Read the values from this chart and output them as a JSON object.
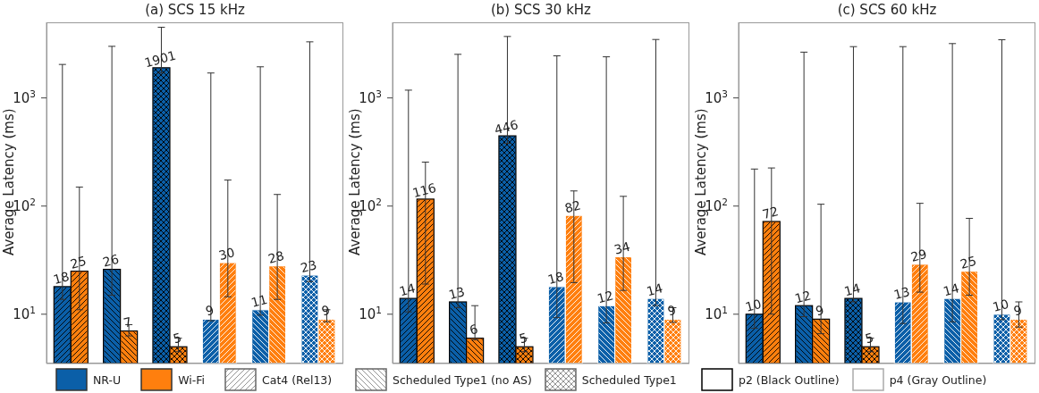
{
  "chart_data": [
    {
      "type": "bar",
      "title": "(a) SCS 15 kHz",
      "ylabel": "Average Latency (ms)",
      "categories": [
        null,
        null,
        null,
        null,
        null,
        null
      ],
      "series": [
        {
          "name": "NR-U",
          "color": "#0b5fa8",
          "values": [
            18,
            26,
            1901,
            9,
            11,
            23
          ],
          "errors": [
            [
              13.7,
              2040
            ],
            [
              15,
              3000
            ],
            [
              1700,
              4500
            ],
            [
              8.7,
              1700
            ],
            [
              9.8,
              1940
            ],
            [
              20,
              3300
            ]
          ]
        },
        {
          "name": "Wi-Fi",
          "color": "#ff7f0e",
          "values": [
            25,
            7,
            5,
            30,
            28,
            9
          ],
          "errors": [
            [
              11,
              150
            ],
            [
              6.3,
              8
            ],
            [
              4.5,
              6
            ],
            [
              14.5,
              174
            ],
            [
              13.7,
              128
            ],
            [
              8.5,
              11
            ]
          ]
        }
      ],
      "ylim": [
        3.5,
        5000
      ],
      "yticks": [
        {
          "value": 10,
          "label": "10$^{1}$"
        },
        {
          "value": 100,
          "label": "10$^{2}$"
        },
        {
          "value": 1000,
          "label": "10$^{3}$"
        }
      ],
      "log": true,
      "data_labels": true,
      "tick_labels": "y",
      "legend": "bottom",
      "annotations": [
        "Cat4 (Rel13)"
      ]
    },
    {
      "type": "bar",
      "title": "(b) SCS 30 kHz",
      "ylabel": "Average Latency (ms)",
      "categories": [
        null,
        null,
        null,
        null,
        null,
        null
      ],
      "series": [
        {
          "color": "#0b5fa8",
          "values": [
            14,
            13,
            446,
            18,
            12,
            14
          ],
          "errors": [
            [
              10.5,
              1180
            ],
            [
              11.5,
              2530
            ],
            [
              380,
              3700
            ],
            [
              9.3,
              2450
            ],
            [
              8.3,
              2400
            ],
            [
              12,
              3470
            ]
          ]
        },
        {
          "color": "#ff7f0e",
          "values": [
            116,
            6,
            5,
            82,
            34,
            9
          ],
          "errors": [
            [
              19,
              255
            ],
            [
              5.8,
              12
            ],
            [
              4.5,
              6
            ],
            [
              19.6,
              138
            ],
            [
              16.6,
              123
            ],
            [
              8.4,
              11.5
            ]
          ]
        }
      ],
      "ylim": [
        3.5,
        5000
      ],
      "yticks": [
        {
          "value": 10,
          "label": "10$^{1}$"
        },
        {
          "value": 100,
          "label": "10$^{2}$"
        },
        {
          "value": 1000,
          "label": "10$^{3}$"
        }
      ],
      "log": true,
      "data_labels": true,
      "tick_labels": "y",
      "annotations": [
        "Scheduled Type1 (no AS)",
        "Scheduled Type1"
      ]
    },
    {
      "type": "bar",
      "title": "(c) SCS 60 kHz",
      "ylabel": "Average Latency (ms)",
      "categories": [
        null,
        null,
        null,
        null,
        null,
        null
      ],
      "series": [
        {
          "color": "#0b5fa8",
          "values": [
            10,
            12,
            14,
            13,
            14,
            10
          ],
          "errors": [
            [
              7.4,
              220
            ],
            [
              9.5,
              2650
            ],
            [
              13,
              2980
            ],
            [
              8.2,
              2980
            ],
            [
              8.5,
              3180
            ],
            [
              8.9,
              3450
            ]
          ]
        },
        {
          "color": "#ff7f0e",
          "values": [
            72,
            9,
            5,
            29,
            25,
            9
          ],
          "errors": [
            [
              10,
              225
            ],
            [
              6.6,
              104
            ],
            [
              4.5,
              6
            ],
            [
              16,
              106
            ],
            [
              15,
              77
            ],
            [
              7.6,
              13
            ]
          ]
        }
      ],
      "ylim": [
        3.5,
        5000
      ],
      "yticks": [
        {
          "value": 10,
          "label": "10$^{1}$"
        },
        {
          "value": 100,
          "label": "10$^{2}$"
        },
        {
          "value": 1000,
          "label": "10$^{3}$"
        }
      ],
      "log": true,
      "data_labels": true,
      "tick_labels": "y",
      "annotations": [
        "p2 (Black Outline)",
        "p4 (Gray Outline)"
      ]
    }
  ]
}
